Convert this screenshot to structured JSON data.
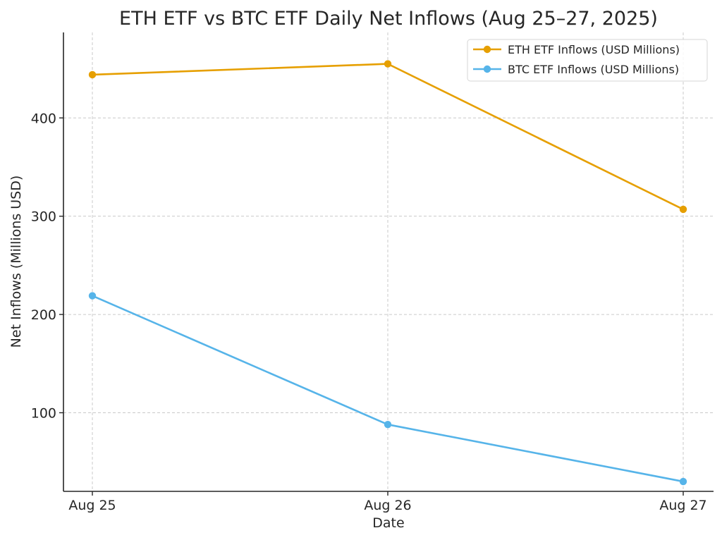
{
  "chart_data": {
    "type": "line",
    "title": "ETH ETF vs BTC ETF Daily Net Inflows (Aug 25–27, 2025)",
    "xlabel": "Date",
    "ylabel": "Net Inflows (Millions USD)",
    "categories": [
      "Aug 25",
      "Aug 26",
      "Aug 27"
    ],
    "yticks": [
      100,
      200,
      300,
      400
    ],
    "ylim": [
      20,
      487
    ],
    "grid": true,
    "legend_position": "top-right",
    "series": [
      {
        "name": "ETH ETF Inflows (USD Millions)",
        "color": "#E69F00",
        "values": [
          444,
          455,
          307
        ]
      },
      {
        "name": "BTC ETF Inflows (USD Millions)",
        "color": "#56B4E9",
        "values": [
          219,
          88,
          30
        ]
      }
    ]
  }
}
